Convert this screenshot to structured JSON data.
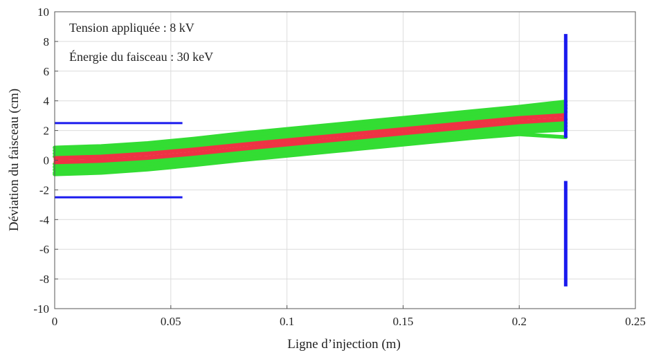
{
  "chart_data": {
    "type": "line",
    "title": "",
    "xlabel": "Ligne d’injection (m)",
    "ylabel": "Déviation du faisceau (cm)",
    "xlim": [
      0,
      0.25
    ],
    "ylim": [
      -10,
      10
    ],
    "x_ticks": [
      0,
      0.05,
      0.1,
      0.15,
      0.2,
      0.25
    ],
    "x_tick_labels": [
      "0",
      "0.05",
      "0.1",
      "0.15",
      "0.2",
      "0.25"
    ],
    "y_ticks": [
      -10,
      -8,
      -6,
      -4,
      -2,
      0,
      2,
      4,
      6,
      8,
      10
    ],
    "y_tick_labels": [
      "-10",
      "-8",
      "-6",
      "-4",
      "-2",
      "0",
      "2",
      "4",
      "6",
      "8",
      "10"
    ],
    "grid": true,
    "annotations": [
      "Tension appliquée : 8 kV",
      "Énergie du faisceau : 30 keV"
    ],
    "colors": {
      "outer_beam": "#33dd33",
      "core_beam": "#ee3344",
      "electrodes": "#1a1aee",
      "grid": "#dcdcdc"
    },
    "beam_x": [
      0,
      0.02,
      0.04,
      0.06,
      0.08,
      0.1,
      0.12,
      0.14,
      0.16,
      0.18,
      0.2,
      0.22
    ],
    "series": [
      {
        "group": "outer",
        "y": [
          0.85,
          0.95,
          1.15,
          1.45,
          1.8,
          2.1,
          2.4,
          2.7,
          3.0,
          3.3,
          3.6,
          3.95
        ]
      },
      {
        "group": "outer",
        "y": [
          0.65,
          0.78,
          0.98,
          1.27,
          1.6,
          1.9,
          2.2,
          2.5,
          2.8,
          3.1,
          3.4,
          3.7
        ]
      },
      {
        "group": "outer",
        "y": [
          0.45,
          0.58,
          0.79,
          1.08,
          1.4,
          1.7,
          2.0,
          2.3,
          2.6,
          2.9,
          3.2,
          3.5
        ]
      },
      {
        "group": "outer",
        "y": [
          0.25,
          0.38,
          0.6,
          0.88,
          1.2,
          1.5,
          1.8,
          2.1,
          2.4,
          2.7,
          3.0,
          3.25
        ]
      },
      {
        "group": "outer",
        "y": [
          -0.25,
          -0.13,
          0.1,
          0.4,
          0.7,
          1.0,
          1.3,
          1.6,
          1.9,
          2.2,
          2.5,
          2.75
        ]
      },
      {
        "group": "outer",
        "y": [
          -0.45,
          -0.33,
          -0.1,
          0.2,
          0.5,
          0.8,
          1.1,
          1.4,
          1.7,
          2.0,
          2.3,
          2.5
        ]
      },
      {
        "group": "outer",
        "y": [
          -0.65,
          -0.53,
          -0.3,
          0.0,
          0.3,
          0.6,
          0.9,
          1.2,
          1.5,
          1.8,
          2.1,
          2.3
        ]
      },
      {
        "group": "outer",
        "y": [
          -0.85,
          -0.75,
          -0.52,
          -0.22,
          0.1,
          0.4,
          0.7,
          1.0,
          1.3,
          1.6,
          1.9,
          2.05
        ]
      },
      {
        "group": "outer",
        "y": [
          -0.95,
          -0.85,
          -0.63,
          -0.33,
          0.0,
          0.3,
          0.6,
          0.9,
          1.2,
          1.5,
          1.75,
          1.55
        ]
      },
      {
        "group": "core",
        "y": [
          0.2,
          0.3,
          0.5,
          0.78,
          1.1,
          1.4,
          1.7,
          2.0,
          2.3,
          2.6,
          2.9,
          3.1
        ]
      },
      {
        "group": "core",
        "y": [
          0.07,
          0.17,
          0.37,
          0.65,
          0.97,
          1.27,
          1.57,
          1.87,
          2.17,
          2.47,
          2.77,
          2.97
        ]
      },
      {
        "group": "core",
        "y": [
          -0.07,
          0.03,
          0.23,
          0.51,
          0.83,
          1.13,
          1.43,
          1.73,
          2.03,
          2.33,
          2.63,
          2.83
        ]
      },
      {
        "group": "core",
        "y": [
          -0.2,
          -0.1,
          0.1,
          0.38,
          0.7,
          1.0,
          1.3,
          1.6,
          1.9,
          2.2,
          2.5,
          2.7
        ]
      }
    ],
    "electrodes": [
      {
        "x": [
          0,
          0.055
        ],
        "y": [
          2.5,
          2.5
        ]
      },
      {
        "x": [
          0,
          0.055
        ],
        "y": [
          -2.5,
          -2.5
        ]
      },
      {
        "x": [
          0.22,
          0.22
        ],
        "y": [
          1.5,
          8.5
        ]
      },
      {
        "x": [
          0.22,
          0.22
        ],
        "y": [
          -1.4,
          -8.5
        ]
      }
    ]
  }
}
